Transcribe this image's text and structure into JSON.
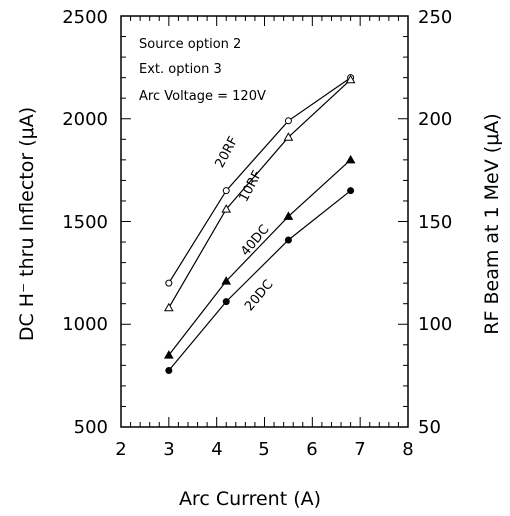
{
  "chart_data": {
    "type": "line",
    "xlabel": "Arc Current (A)",
    "ylabel": "DC H⁻ thru Inflector (μA)",
    "y2label": "RF Beam at 1 MeV (μA)",
    "xlim": [
      2,
      8
    ],
    "ylim": [
      500,
      2500
    ],
    "y2lim": [
      50,
      250
    ],
    "x_ticks": [
      "2",
      "3",
      "4",
      "5",
      "6",
      "7",
      "8"
    ],
    "y_ticks": [
      "500",
      "1000",
      "1500",
      "2000",
      "2500"
    ],
    "y2_ticks": [
      "50",
      "100",
      "150",
      "200",
      "250"
    ],
    "grid": false,
    "notes": [
      "Source option 2",
      "Ext. option 3",
      "Arc Voltage = 120V"
    ],
    "series": [
      {
        "name": "20RF",
        "axis": "right",
        "marker": "open-circle",
        "x": [
          3.0,
          4.2,
          5.5,
          6.8
        ],
        "y": [
          120,
          165,
          199,
          220
        ]
      },
      {
        "name": "10RF",
        "axis": "right",
        "marker": "open-triangle",
        "x": [
          3.0,
          4.2,
          5.5,
          6.8
        ],
        "y": [
          108,
          156,
          191,
          219
        ]
      },
      {
        "name": "40DC",
        "axis": "left",
        "marker": "filled-triangle",
        "x": [
          3.0,
          4.2,
          5.5,
          6.8
        ],
        "y": [
          850,
          1210,
          1525,
          1800
        ]
      },
      {
        "name": "20DC",
        "axis": "left",
        "marker": "filled-circle",
        "x": [
          3.0,
          4.2,
          5.5,
          6.8
        ],
        "y": [
          775,
          1110,
          1410,
          1650
        ]
      }
    ]
  }
}
